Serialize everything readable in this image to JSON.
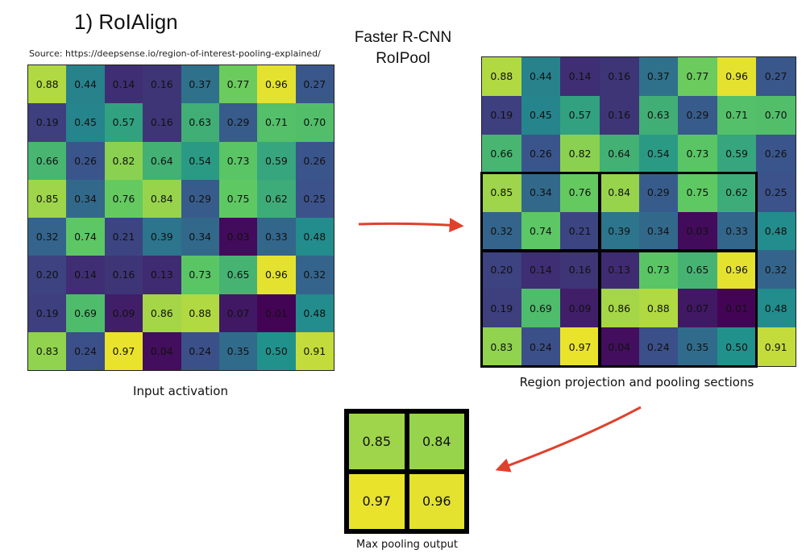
{
  "title": "1) RoIAlign",
  "source": "Source: https://deepsense.io/region-of-interest-pooling-explained/",
  "method": [
    "Faster R-CNN",
    "RoIPool"
  ],
  "captions": {
    "input": "Input activation",
    "region": "Region projection and pooling sections",
    "max": "Max pooling output"
  },
  "input_grid": [
    [
      "0.88",
      "0.44",
      "0.14",
      "0.16",
      "0.37",
      "0.77",
      "0.96",
      "0.27"
    ],
    [
      "0.19",
      "0.45",
      "0.57",
      "0.16",
      "0.63",
      "0.29",
      "0.71",
      "0.70"
    ],
    [
      "0.66",
      "0.26",
      "0.82",
      "0.64",
      "0.54",
      "0.73",
      "0.59",
      "0.26"
    ],
    [
      "0.85",
      "0.34",
      "0.76",
      "0.84",
      "0.29",
      "0.75",
      "0.62",
      "0.25"
    ],
    [
      "0.32",
      "0.74",
      "0.21",
      "0.39",
      "0.34",
      "0.03",
      "0.33",
      "0.48"
    ],
    [
      "0.20",
      "0.14",
      "0.16",
      "0.13",
      "0.73",
      "0.65",
      "0.96",
      "0.32"
    ],
    [
      "0.19",
      "0.69",
      "0.09",
      "0.86",
      "0.88",
      "0.07",
      "0.01",
      "0.48"
    ],
    [
      "0.83",
      "0.24",
      "0.97",
      "0.04",
      "0.24",
      "0.35",
      "0.50",
      "0.91"
    ]
  ],
  "pooling_sections": [
    {
      "rows": [
        3,
        4
      ],
      "cols": [
        0,
        2
      ]
    },
    {
      "rows": [
        3,
        4
      ],
      "cols": [
        3,
        6
      ]
    },
    {
      "rows": [
        5,
        7
      ],
      "cols": [
        0,
        2
      ]
    },
    {
      "rows": [
        5,
        7
      ],
      "cols": [
        3,
        6
      ]
    }
  ],
  "max_output": [
    [
      "0.85",
      "0.84"
    ],
    [
      "0.97",
      "0.96"
    ]
  ],
  "colormap": [
    "#440154",
    "#3b528b",
    "#21918c",
    "#5ec962",
    "#fde725"
  ]
}
